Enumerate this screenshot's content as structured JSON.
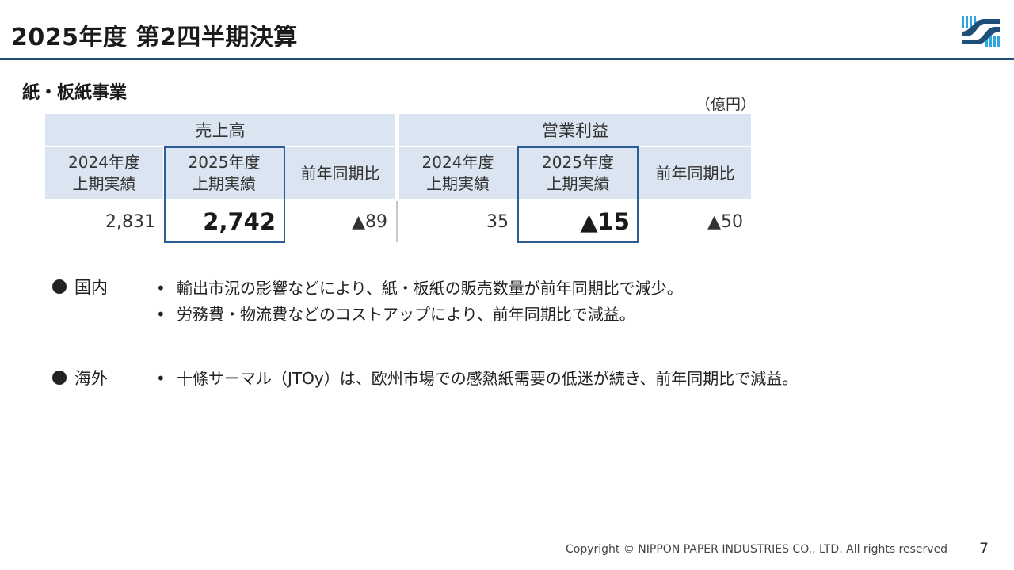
{
  "header": {
    "title": "2025年度 第2四半期決算"
  },
  "section": {
    "title": "紙・板紙事業",
    "unit": "（億円）"
  },
  "table": {
    "groups": [
      "売上高",
      "営業利益"
    ],
    "columns": [
      {
        "line1": "2024年度",
        "line2": "上期実績"
      },
      {
        "line1": "2025年度",
        "line2": "上期実績"
      },
      {
        "line1": "前年同期比",
        "line2": ""
      },
      {
        "line1": "2024年度",
        "line2": "上期実績"
      },
      {
        "line1": "2025年度",
        "line2": "上期実績"
      },
      {
        "line1": "前年同期比",
        "line2": ""
      }
    ],
    "values": [
      "2,831",
      "2,742",
      "▲89",
      "35",
      "▲15",
      "▲50"
    ]
  },
  "notes": [
    {
      "region": "国内",
      "bullets": [
        "輸出市況の影響などにより、紙・板紙の販売数量が前年同期比で減少。",
        "労務費・物流費などのコストアップにより、前年同期比で減益。"
      ]
    },
    {
      "region": "海外",
      "bullets": [
        "十條サーマル（JTOy）は、欧州市場での感熱紙需要の低迷が続き、前年同期比で減益。"
      ]
    }
  ],
  "footer": {
    "copyright": "Copyright © NIPPON PAPER INDUSTRIES CO., LTD. All rights reserved",
    "page_number": "7"
  },
  "colors": {
    "accent": "#1f4e79",
    "header_fill": "#dbe5f1",
    "highlight_border": "#2e5d95",
    "logo_blue": "#2ea6df"
  }
}
